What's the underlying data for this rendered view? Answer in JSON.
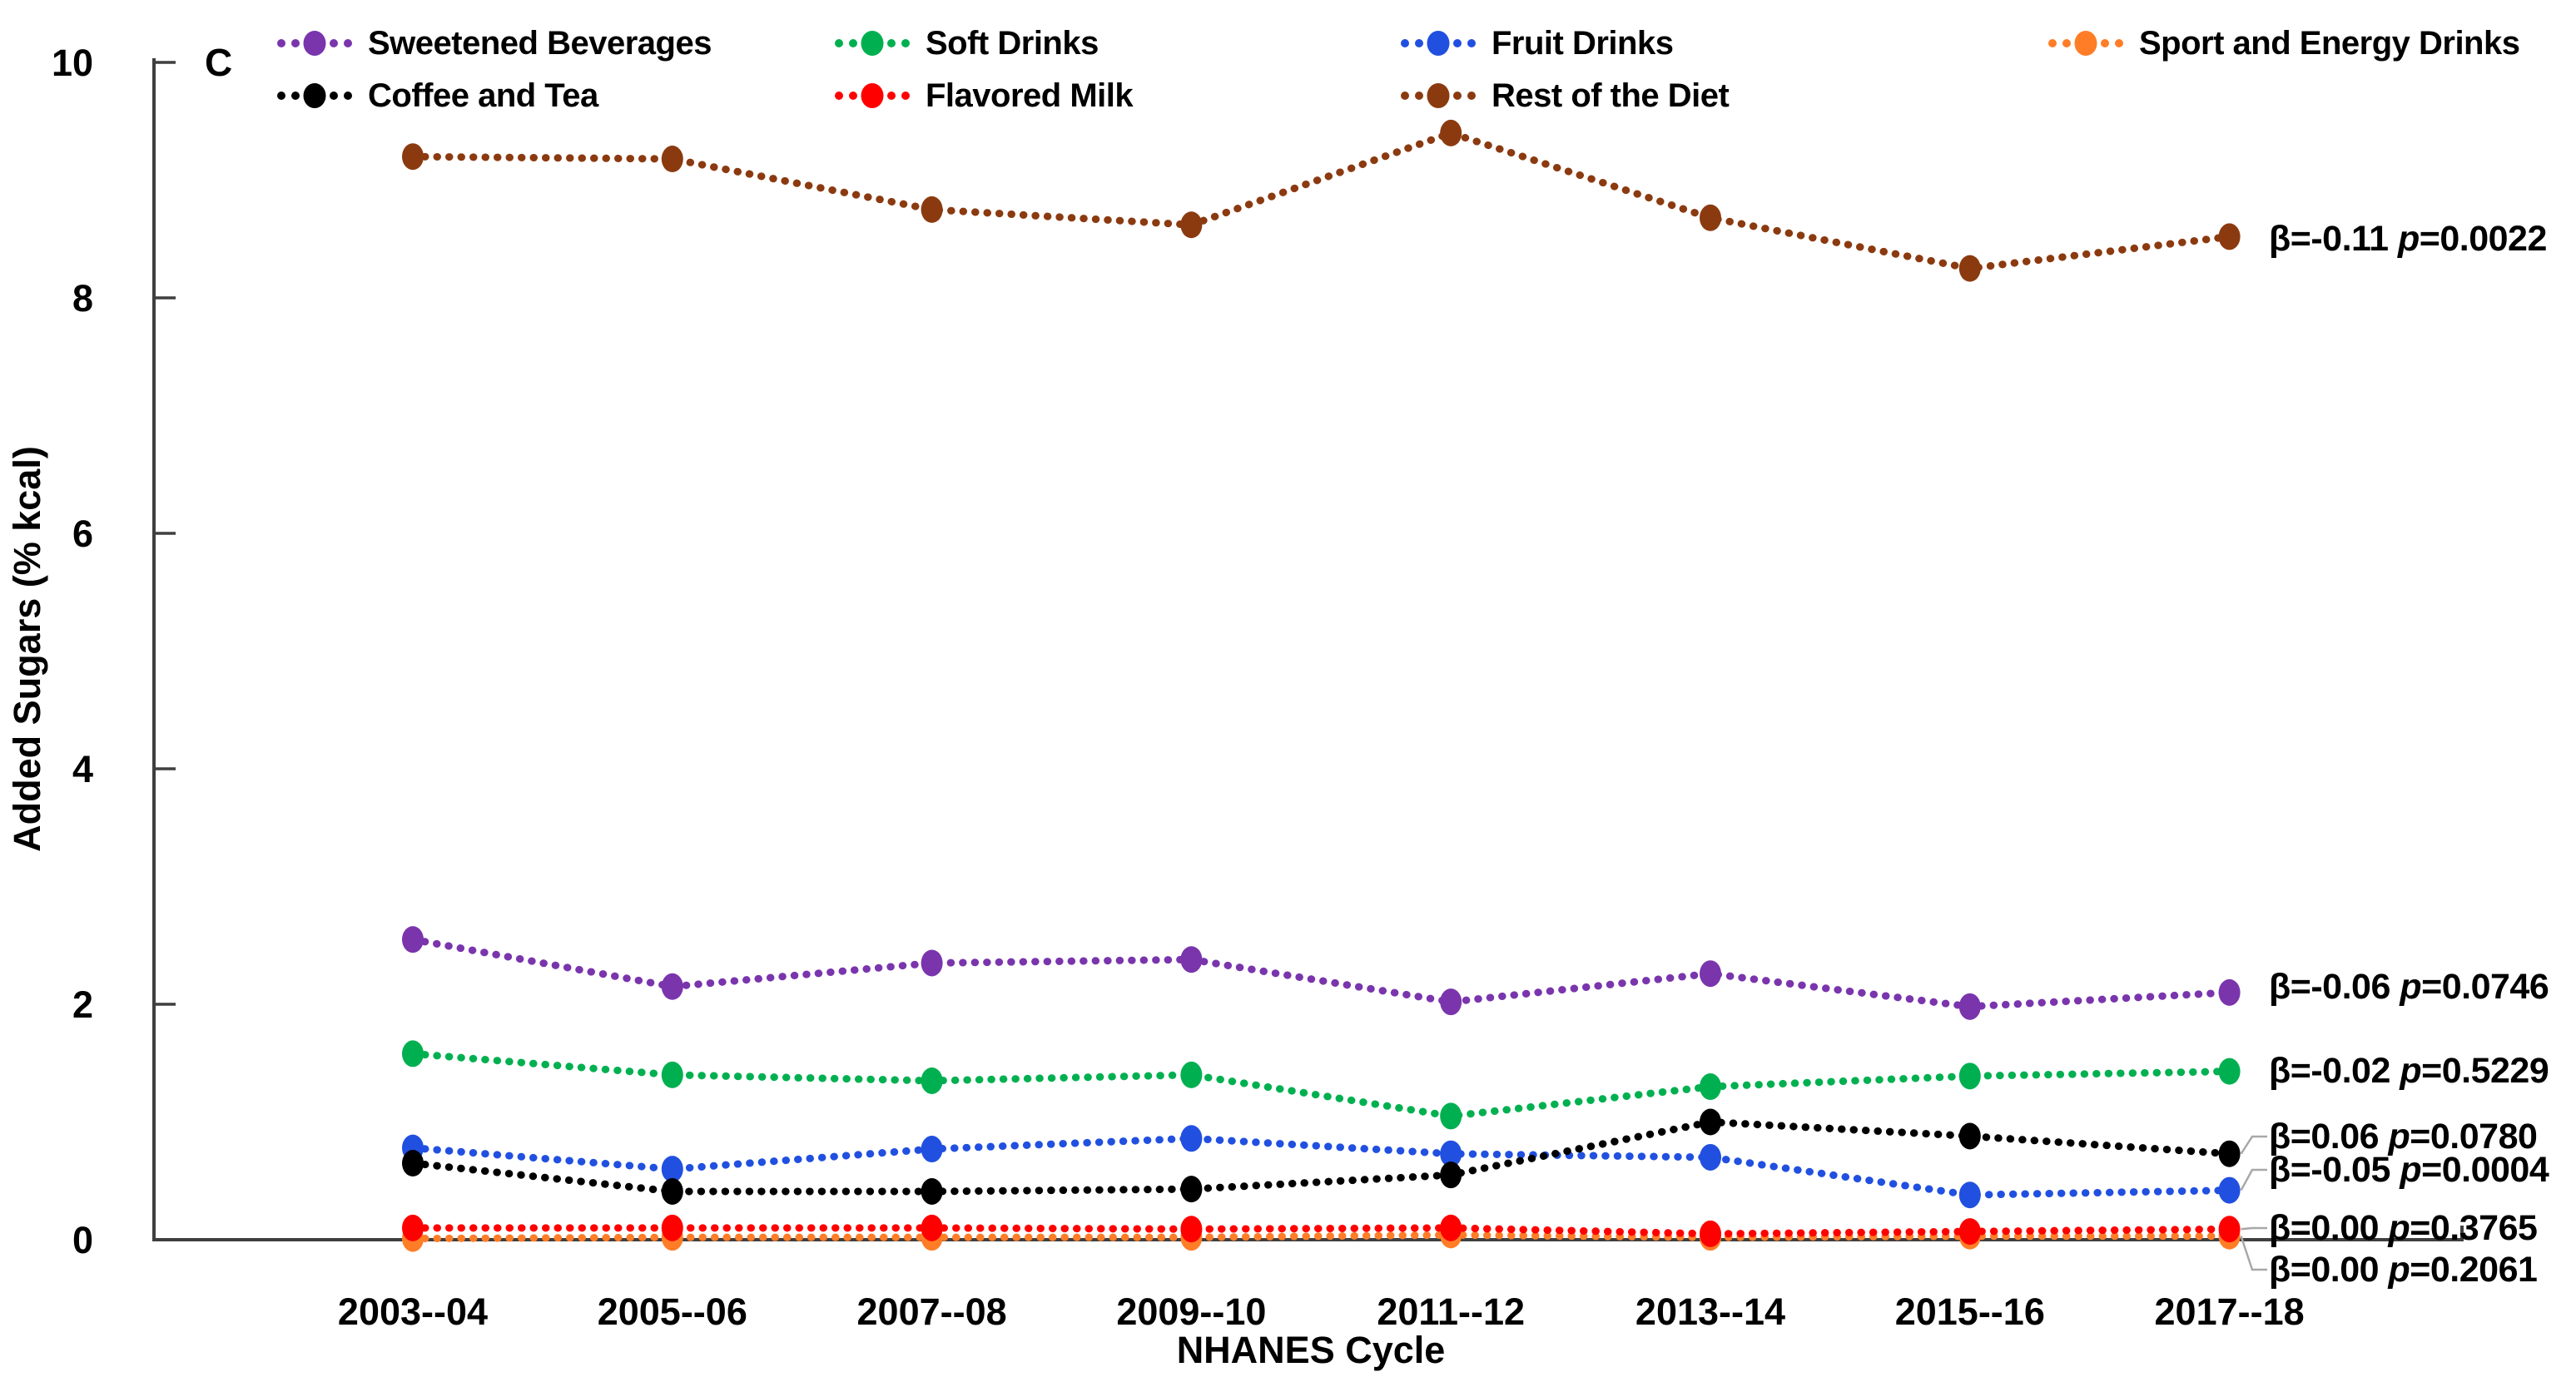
{
  "chart_data": {
    "type": "line",
    "panel_label": "C",
    "x_axis_title": "NHANES Cycle",
    "y_axis_title": "Added Sugars (% kcal)",
    "ylim": [
      0,
      10
    ],
    "y_ticks": [
      0,
      2,
      4,
      6,
      8,
      10
    ],
    "grid": false,
    "legend_position": "top",
    "marker_style": "filled circle on dotted line",
    "p_label": "p",
    "categories": [
      "2003--04",
      "2005--06",
      "2007--08",
      "2009--10",
      "2011--12",
      "2013--14",
      "2015--16",
      "2017--18"
    ],
    "series": [
      {
        "name": "Sweetened Beverages",
        "color": "#7A35AD",
        "legend_row": 0,
        "legend_col": 0,
        "values": [
          2.55,
          2.15,
          2.35,
          2.38,
          2.02,
          2.26,
          1.98,
          2.1
        ],
        "beta": "β=-0.06",
        "p_value": "0.0746"
      },
      {
        "name": "Soft Drinks",
        "color": "#00B050",
        "legend_row": 0,
        "legend_col": 1,
        "values": [
          1.58,
          1.4,
          1.35,
          1.4,
          1.05,
          1.3,
          1.39,
          1.43
        ],
        "beta": "β=-0.02",
        "p_value": "0.5229"
      },
      {
        "name": "Fruit Drinks",
        "color": "#2150E0",
        "legend_row": 0,
        "legend_col": 2,
        "values": [
          0.78,
          0.6,
          0.77,
          0.86,
          0.73,
          0.7,
          0.38,
          0.42
        ],
        "beta": "β=-0.05",
        "p_value": "0.0004"
      },
      {
        "name": "Sport and Energy Drinks",
        "color": "#FF7D27",
        "legend_row": 0,
        "legend_col": 3,
        "values": [
          0.01,
          0.02,
          0.02,
          0.02,
          0.04,
          0.02,
          0.03,
          0.03
        ],
        "beta": "β=0.00",
        "p_value": "0.2061"
      },
      {
        "name": "Coffee and Tea",
        "color": "#000000",
        "legend_row": 1,
        "legend_col": 0,
        "values": [
          0.65,
          0.41,
          0.41,
          0.43,
          0.55,
          1.0,
          0.88,
          0.73
        ],
        "beta": "β=0.06",
        "p_value": "0.0780"
      },
      {
        "name": "Flavored Milk",
        "color": "#FF0000",
        "legend_row": 1,
        "legend_col": 1,
        "values": [
          0.1,
          0.1,
          0.1,
          0.09,
          0.1,
          0.05,
          0.07,
          0.09
        ],
        "beta": "β=0.00",
        "p_value": "0.3765"
      },
      {
        "name": "Rest of the Diet",
        "color": "#8B3A10",
        "legend_row": 1,
        "legend_col": 2,
        "values": [
          9.2,
          9.18,
          8.75,
          8.62,
          9.4,
          8.68,
          8.25,
          8.52
        ],
        "beta": "β=-0.11",
        "p_value": "0.0022"
      }
    ]
  }
}
